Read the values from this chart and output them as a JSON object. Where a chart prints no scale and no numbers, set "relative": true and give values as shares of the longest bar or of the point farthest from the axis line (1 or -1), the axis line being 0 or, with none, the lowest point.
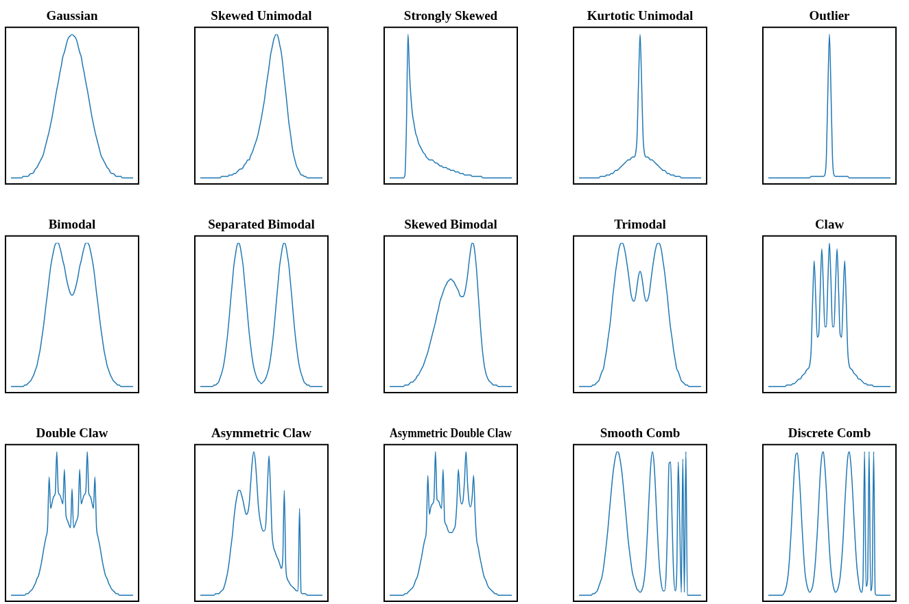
{
  "chart_data": [
    {
      "type": "line",
      "title": "Gaussian",
      "color": "#1f77b4",
      "relative": true,
      "categories": [
        null,
        null,
        null,
        null,
        null,
        null,
        null,
        null,
        null,
        null,
        null,
        null,
        null,
        null,
        null,
        null,
        null,
        null,
        null,
        null,
        null,
        null,
        null,
        null,
        null,
        null,
        null,
        null,
        null,
        null,
        null,
        null,
        null,
        null,
        null,
        null,
        null,
        null,
        null,
        null,
        null,
        null,
        null,
        null,
        null,
        null,
        null,
        null,
        null,
        null,
        null,
        null,
        null,
        null,
        null,
        null,
        null,
        null,
        null,
        null,
        null,
        null,
        null,
        null,
        null,
        null,
        null,
        null,
        null,
        null,
        null,
        null,
        null,
        null,
        null,
        null,
        null,
        null,
        null,
        null,
        null
      ],
      "values": [
        0.04,
        0.04,
        0.04,
        0.04,
        0.04,
        0.04,
        0.04,
        0.04,
        0.05,
        0.05,
        0.05,
        0.05,
        0.06,
        0.07,
        0.07,
        0.08,
        0.1,
        0.11,
        0.13,
        0.15,
        0.17,
        0.19,
        0.23,
        0.27,
        0.31,
        0.35,
        0.4,
        0.45,
        0.51,
        0.57,
        0.63,
        0.68,
        0.74,
        0.79,
        0.85,
        0.88,
        0.92,
        0.96,
        0.98,
        0.99,
        1,
        0.99,
        0.98,
        0.96,
        0.92,
        0.88,
        0.85,
        0.79,
        0.74,
        0.68,
        0.63,
        0.57,
        0.51,
        0.45,
        0.4,
        0.35,
        0.31,
        0.27,
        0.23,
        0.19,
        0.17,
        0.15,
        0.13,
        0.11,
        0.1,
        0.08,
        0.07,
        0.07,
        0.06,
        0.05,
        0.05,
        0.05,
        0.05,
        0.04,
        0.04,
        0.04,
        0.04,
        0.04,
        0.04,
        0.04,
        0.04
      ]
    },
    {
      "type": "line",
      "title": "Skewed Unimodal",
      "color": "#1f77b4",
      "relative": true,
      "categories": [
        null,
        null,
        null,
        null,
        null,
        null,
        null,
        null,
        null,
        null,
        null,
        null,
        null,
        null,
        null,
        null,
        null,
        null,
        null,
        null,
        null,
        null,
        null,
        null,
        null,
        null,
        null,
        null,
        null,
        null,
        null,
        null,
        null,
        null,
        null,
        null,
        null,
        null,
        null,
        null,
        null,
        null,
        null,
        null,
        null,
        null,
        null,
        null,
        null,
        null,
        null,
        null,
        null,
        null,
        null,
        null,
        null,
        null,
        null,
        null,
        null,
        null,
        null,
        null,
        null,
        null,
        null,
        null,
        null,
        null,
        null,
        null,
        null,
        null,
        null,
        null,
        null,
        null,
        null,
        null,
        null
      ],
      "values": [
        0.04,
        0.04,
        0.04,
        0.04,
        0.04,
        0.04,
        0.04,
        0.04,
        0.04,
        0.04,
        0.04,
        0.04,
        0.04,
        0.04,
        0.05,
        0.05,
        0.05,
        0.05,
        0.05,
        0.06,
        0.06,
        0.06,
        0.07,
        0.07,
        0.08,
        0.09,
        0.1,
        0.1,
        0.11,
        0.13,
        0.14,
        0.16,
        0.16,
        0.19,
        0.21,
        0.24,
        0.27,
        0.3,
        0.34,
        0.39,
        0.44,
        0.5,
        0.56,
        0.64,
        0.71,
        0.78,
        0.86,
        0.91,
        0.96,
        0.99,
        1,
        0.98,
        0.93,
        0.88,
        0.8,
        0.7,
        0.61,
        0.51,
        0.41,
        0.34,
        0.26,
        0.2,
        0.16,
        0.12,
        0.1,
        0.08,
        0.06,
        0.06,
        0.05,
        0.05,
        0.04,
        0.04,
        0.04,
        0.04,
        0.04,
        0.04,
        0.04,
        0.04,
        0.04,
        0.04,
        0.04
      ]
    },
    {
      "type": "line",
      "title": "Strongly Skewed",
      "color": "#1f77b4",
      "relative": true,
      "categories": [
        null,
        null,
        null,
        null,
        null,
        null,
        null,
        null,
        null,
        null,
        null,
        null,
        null,
        null,
        null,
        null,
        null,
        null,
        null,
        null,
        null,
        null,
        null,
        null,
        null,
        null,
        null,
        null,
        null,
        null,
        null,
        null,
        null,
        null,
        null,
        null,
        null,
        null,
        null,
        null,
        null,
        null,
        null,
        null,
        null,
        null,
        null,
        null,
        null,
        null,
        null,
        null,
        null,
        null,
        null,
        null,
        null,
        null,
        null,
        null,
        null,
        null,
        null,
        null,
        null,
        null,
        null,
        null,
        null,
        null,
        null,
        null,
        null,
        null,
        null,
        null,
        null,
        null,
        null,
        null,
        null
      ],
      "values": [
        0.04,
        0.04,
        0.04,
        0.04,
        0.04,
        0.04,
        0.04,
        0.04,
        0.04,
        0.04,
        0.06,
        0.4,
        1,
        0.74,
        0.57,
        0.46,
        0.4,
        0.34,
        0.31,
        0.27,
        0.25,
        0.23,
        0.21,
        0.2,
        0.18,
        0.17,
        0.16,
        0.16,
        0.16,
        0.15,
        0.14,
        0.14,
        0.13,
        0.12,
        0.12,
        0.11,
        0.11,
        0.11,
        0.1,
        0.1,
        0.09,
        0.09,
        0.09,
        0.08,
        0.08,
        0.08,
        0.07,
        0.07,
        0.07,
        0.06,
        0.06,
        0.06,
        0.06,
        0.06,
        0.05,
        0.05,
        0.05,
        0.05,
        0.05,
        0.05,
        0.05,
        0.04,
        0.04,
        0.04,
        0.04,
        0.04,
        0.04,
        0.04,
        0.04,
        0.04,
        0.04,
        0.04,
        0.04,
        0.04,
        0.04,
        0.04,
        0.04,
        0.04,
        0.04,
        0.04,
        0.04
      ]
    },
    {
      "type": "line",
      "title": "Kurtotic Unimodal",
      "color": "#1f77b4",
      "relative": true,
      "categories": [
        null,
        null,
        null,
        null,
        null,
        null,
        null,
        null,
        null,
        null,
        null,
        null,
        null,
        null,
        null,
        null,
        null,
        null,
        null,
        null,
        null,
        null,
        null,
        null,
        null,
        null,
        null,
        null,
        null,
        null,
        null,
        null,
        null,
        null,
        null,
        null,
        null,
        null,
        null,
        null,
        null,
        null,
        null,
        null,
        null,
        null,
        null,
        null,
        null,
        null,
        null,
        null,
        null,
        null,
        null,
        null,
        null,
        null,
        null,
        null,
        null,
        null,
        null,
        null,
        null,
        null,
        null,
        null,
        null,
        null,
        null,
        null,
        null,
        null,
        null,
        null,
        null,
        null,
        null,
        null,
        null
      ],
      "values": [
        0.04,
        0.04,
        0.04,
        0.04,
        0.04,
        0.04,
        0.04,
        0.04,
        0.04,
        0.04,
        0.04,
        0.04,
        0.04,
        0.04,
        0.05,
        0.05,
        0.05,
        0.05,
        0.06,
        0.06,
        0.06,
        0.07,
        0.07,
        0.08,
        0.09,
        0.09,
        0.1,
        0.11,
        0.12,
        0.13,
        0.14,
        0.15,
        0.16,
        0.16,
        0.17,
        0.18,
        0.18,
        0.2,
        0.31,
        0.68,
        1,
        0.68,
        0.31,
        0.2,
        0.18,
        0.18,
        0.17,
        0.16,
        0.16,
        0.15,
        0.14,
        0.13,
        0.12,
        0.11,
        0.1,
        0.09,
        0.09,
        0.08,
        0.07,
        0.07,
        0.06,
        0.06,
        0.06,
        0.05,
        0.05,
        0.05,
        0.05,
        0.04,
        0.04,
        0.04,
        0.04,
        0.04,
        0.04,
        0.04,
        0.04,
        0.04,
        0.04,
        0.04,
        0.04,
        0.04,
        0.04
      ]
    },
    {
      "type": "line",
      "title": "Outlier",
      "color": "#1f77b4",
      "relative": true,
      "categories": [
        null,
        null,
        null,
        null,
        null,
        null,
        null,
        null,
        null,
        null,
        null,
        null,
        null,
        null,
        null,
        null,
        null,
        null,
        null,
        null,
        null,
        null,
        null,
        null,
        null,
        null,
        null,
        null,
        null,
        null,
        null,
        null,
        null,
        null,
        null,
        null,
        null,
        null,
        null,
        null,
        null,
        null,
        null,
        null,
        null,
        null,
        null,
        null,
        null,
        null,
        null,
        null,
        null,
        null,
        null,
        null,
        null,
        null,
        null,
        null,
        null,
        null,
        null,
        null,
        null,
        null,
        null,
        null,
        null,
        null,
        null,
        null,
        null,
        null,
        null,
        null,
        null,
        null,
        null,
        null,
        null
      ],
      "values": [
        0.04,
        0.04,
        0.04,
        0.04,
        0.04,
        0.04,
        0.04,
        0.04,
        0.04,
        0.04,
        0.04,
        0.04,
        0.04,
        0.04,
        0.04,
        0.04,
        0.04,
        0.04,
        0.04,
        0.04,
        0.04,
        0.04,
        0.04,
        0.04,
        0.04,
        0.04,
        0.04,
        0.04,
        0.05,
        0.05,
        0.05,
        0.05,
        0.05,
        0.05,
        0.05,
        0.05,
        0.05,
        0.06,
        0.18,
        0.63,
        1,
        0.63,
        0.18,
        0.06,
        0.05,
        0.05,
        0.05,
        0.05,
        0.05,
        0.05,
        0.05,
        0.05,
        0.05,
        0.04,
        0.04,
        0.04,
        0.04,
        0.04,
        0.04,
        0.04,
        0.04,
        0.04,
        0.04,
        0.04,
        0.04,
        0.04,
        0.04,
        0.04,
        0.04,
        0.04,
        0.04,
        0.04,
        0.04,
        0.04,
        0.04,
        0.04,
        0.04,
        0.04,
        0.04,
        0.04,
        0.04
      ]
    },
    {
      "type": "line",
      "title": "Bimodal",
      "color": "#1f77b4",
      "relative": true,
      "categories": [
        null,
        null,
        null,
        null,
        null,
        null,
        null,
        null,
        null,
        null,
        null,
        null,
        null,
        null,
        null,
        null,
        null,
        null,
        null,
        null,
        null,
        null,
        null,
        null,
        null,
        null,
        null,
        null,
        null,
        null,
        null,
        null,
        null,
        null,
        null,
        null,
        null,
        null,
        null,
        null,
        null,
        null,
        null,
        null,
        null,
        null,
        null,
        null,
        null,
        null,
        null,
        null,
        null,
        null,
        null,
        null,
        null,
        null,
        null,
        null,
        null,
        null,
        null,
        null,
        null,
        null,
        null,
        null,
        null,
        null,
        null,
        null,
        null,
        null,
        null,
        null,
        null,
        null,
        null,
        null,
        null
      ],
      "values": [
        0.04,
        0.04,
        0.04,
        0.04,
        0.04,
        0.04,
        0.04,
        0.04,
        0.04,
        0.05,
        0.05,
        0.06,
        0.07,
        0.08,
        0.1,
        0.12,
        0.15,
        0.18,
        0.23,
        0.28,
        0.35,
        0.42,
        0.5,
        0.59,
        0.67,
        0.76,
        0.84,
        0.9,
        0.95,
        0.99,
        1,
        1,
        0.97,
        0.93,
        0.88,
        0.84,
        0.78,
        0.73,
        0.69,
        0.66,
        0.65,
        0.66,
        0.69,
        0.73,
        0.78,
        0.84,
        0.88,
        0.93,
        0.97,
        1,
        1,
        0.99,
        0.95,
        0.9,
        0.84,
        0.76,
        0.67,
        0.59,
        0.5,
        0.42,
        0.35,
        0.28,
        0.23,
        0.18,
        0.15,
        0.12,
        0.1,
        0.08,
        0.07,
        0.06,
        0.05,
        0.05,
        0.04,
        0.04,
        0.04,
        0.04,
        0.04,
        0.04,
        0.04,
        0.04,
        0.04
      ]
    },
    {
      "type": "line",
      "title": "Separated Bimodal",
      "color": "#1f77b4",
      "relative": true,
      "categories": [
        null,
        null,
        null,
        null,
        null,
        null,
        null,
        null,
        null,
        null,
        null,
        null,
        null,
        null,
        null,
        null,
        null,
        null,
        null,
        null,
        null,
        null,
        null,
        null,
        null,
        null,
        null,
        null,
        null,
        null,
        null,
        null,
        null,
        null,
        null,
        null,
        null,
        null,
        null,
        null,
        null,
        null,
        null,
        null,
        null,
        null,
        null,
        null,
        null,
        null,
        null,
        null,
        null,
        null,
        null,
        null,
        null,
        null,
        null,
        null,
        null,
        null,
        null,
        null,
        null,
        null,
        null,
        null,
        null,
        null,
        null,
        null,
        null,
        null,
        null,
        null,
        null,
        null,
        null,
        null,
        null
      ],
      "values": [
        0.04,
        0.04,
        0.04,
        0.04,
        0.04,
        0.04,
        0.04,
        0.04,
        0.04,
        0.05,
        0.05,
        0.06,
        0.07,
        0.1,
        0.13,
        0.17,
        0.23,
        0.31,
        0.4,
        0.51,
        0.63,
        0.74,
        0.85,
        0.92,
        0.98,
        1,
        0.98,
        0.92,
        0.85,
        0.74,
        0.63,
        0.51,
        0.4,
        0.31,
        0.23,
        0.17,
        0.13,
        0.1,
        0.08,
        0.07,
        0.06,
        0.07,
        0.08,
        0.1,
        0.13,
        0.17,
        0.23,
        0.31,
        0.4,
        0.51,
        0.63,
        0.74,
        0.85,
        0.92,
        0.98,
        1,
        0.98,
        0.92,
        0.85,
        0.74,
        0.63,
        0.51,
        0.4,
        0.31,
        0.23,
        0.17,
        0.13,
        0.1,
        0.07,
        0.06,
        0.05,
        0.05,
        0.04,
        0.04,
        0.04,
        0.04,
        0.04,
        0.04,
        0.04,
        0.04,
        0.04
      ]
    },
    {
      "type": "line",
      "title": "Skewed Bimodal",
      "color": "#1f77b4",
      "relative": true,
      "categories": [
        null,
        null,
        null,
        null,
        null,
        null,
        null,
        null,
        null,
        null,
        null,
        null,
        null,
        null,
        null,
        null,
        null,
        null,
        null,
        null,
        null,
        null,
        null,
        null,
        null,
        null,
        null,
        null,
        null,
        null,
        null,
        null,
        null,
        null,
        null,
        null,
        null,
        null,
        null,
        null,
        null,
        null,
        null,
        null,
        null,
        null,
        null,
        null,
        null,
        null,
        null,
        null,
        null,
        null,
        null,
        null,
        null,
        null,
        null,
        null,
        null,
        null,
        null,
        null,
        null,
        null,
        null,
        null,
        null,
        null,
        null,
        null,
        null,
        null,
        null,
        null,
        null,
        null,
        null,
        null,
        null
      ],
      "values": [
        0.04,
        0.04,
        0.04,
        0.04,
        0.04,
        0.04,
        0.04,
        0.04,
        0.04,
        0.04,
        0.05,
        0.05,
        0.05,
        0.06,
        0.07,
        0.07,
        0.08,
        0.09,
        0.11,
        0.12,
        0.14,
        0.16,
        0.18,
        0.21,
        0.24,
        0.27,
        0.31,
        0.35,
        0.39,
        0.43,
        0.47,
        0.52,
        0.56,
        0.61,
        0.64,
        0.67,
        0.7,
        0.72,
        0.74,
        0.75,
        0.76,
        0.75,
        0.74,
        0.72,
        0.7,
        0.68,
        0.65,
        0.64,
        0.64,
        0.66,
        0.71,
        0.78,
        0.87,
        0.95,
        1,
        0.99,
        0.92,
        0.81,
        0.66,
        0.51,
        0.37,
        0.26,
        0.18,
        0.13,
        0.1,
        0.08,
        0.07,
        0.06,
        0.05,
        0.05,
        0.05,
        0.04,
        0.04,
        0.04,
        0.04,
        0.04,
        0.04,
        0.04,
        0.04,
        0.04,
        0.04
      ]
    },
    {
      "type": "line",
      "title": "Trimodal",
      "color": "#1f77b4",
      "relative": true,
      "categories": [
        null,
        null,
        null,
        null,
        null,
        null,
        null,
        null,
        null,
        null,
        null,
        null,
        null,
        null,
        null,
        null,
        null,
        null,
        null,
        null,
        null,
        null,
        null,
        null,
        null,
        null,
        null,
        null,
        null,
        null,
        null,
        null,
        null,
        null,
        null,
        null,
        null,
        null,
        null,
        null,
        null,
        null,
        null,
        null,
        null,
        null,
        null,
        null,
        null,
        null,
        null,
        null,
        null,
        null,
        null,
        null,
        null,
        null,
        null,
        null,
        null,
        null,
        null,
        null,
        null,
        null,
        null,
        null,
        null,
        null,
        null,
        null,
        null,
        null,
        null,
        null,
        null,
        null,
        null,
        null,
        null
      ],
      "values": [
        0.04,
        0.04,
        0.04,
        0.04,
        0.04,
        0.04,
        0.04,
        0.04,
        0.04,
        0.05,
        0.05,
        0.06,
        0.07,
        0.08,
        0.11,
        0.14,
        0.16,
        0.22,
        0.28,
        0.36,
        0.43,
        0.52,
        0.63,
        0.72,
        0.81,
        0.88,
        0.95,
        0.99,
        1,
        0.99,
        0.95,
        0.89,
        0.82,
        0.74,
        0.66,
        0.62,
        0.61,
        0.64,
        0.71,
        0.78,
        0.81,
        0.78,
        0.71,
        0.64,
        0.61,
        0.62,
        0.66,
        0.74,
        0.82,
        0.89,
        0.95,
        0.99,
        1,
        0.99,
        0.95,
        0.88,
        0.81,
        0.72,
        0.63,
        0.52,
        0.43,
        0.36,
        0.28,
        0.22,
        0.16,
        0.14,
        0.11,
        0.08,
        0.07,
        0.06,
        0.05,
        0.05,
        0.04,
        0.04,
        0.04,
        0.04,
        0.04,
        0.04,
        0.04,
        0.04,
        0.04
      ]
    },
    {
      "type": "line",
      "title": "Claw",
      "color": "#1f77b4",
      "relative": true,
      "categories": [
        null,
        null,
        null,
        null,
        null,
        null,
        null,
        null,
        null,
        null,
        null,
        null,
        null,
        null,
        null,
        null,
        null,
        null,
        null,
        null,
        null,
        null,
        null,
        null,
        null,
        null,
        null,
        null,
        null,
        null,
        null,
        null,
        null,
        null,
        null,
        null,
        null,
        null,
        null,
        null,
        null,
        null,
        null,
        null,
        null,
        null,
        null,
        null,
        null,
        null,
        null,
        null,
        null,
        null,
        null,
        null,
        null,
        null,
        null,
        null,
        null,
        null,
        null,
        null,
        null,
        null,
        null,
        null,
        null,
        null,
        null,
        null,
        null,
        null,
        null,
        null,
        null,
        null,
        null,
        null,
        null
      ],
      "values": [
        0.04,
        0.04,
        0.04,
        0.04,
        0.04,
        0.04,
        0.04,
        0.04,
        0.04,
        0.04,
        0.04,
        0.04,
        0.05,
        0.05,
        0.05,
        0.05,
        0.06,
        0.06,
        0.07,
        0.08,
        0.09,
        0.09,
        0.11,
        0.12,
        0.13,
        0.15,
        0.16,
        0.18,
        0.28,
        0.61,
        0.88,
        0.64,
        0.37,
        0.39,
        0.69,
        0.96,
        0.72,
        0.44,
        0.44,
        0.75,
        1,
        0.75,
        0.44,
        0.44,
        0.72,
        0.96,
        0.69,
        0.39,
        0.37,
        0.64,
        0.88,
        0.61,
        0.28,
        0.18,
        0.16,
        0.15,
        0.13,
        0.12,
        0.11,
        0.09,
        0.09,
        0.08,
        0.07,
        0.06,
        0.06,
        0.05,
        0.05,
        0.05,
        0.05,
        0.04,
        0.04,
        0.04,
        0.04,
        0.04,
        0.04,
        0.04,
        0.04,
        0.04,
        0.04,
        0.04,
        0.04
      ]
    },
    {
      "type": "line",
      "title": "Double Claw",
      "color": "#1f77b4",
      "relative": true,
      "categories": [
        null,
        null,
        null,
        null,
        null,
        null,
        null,
        null,
        null,
        null,
        null,
        null,
        null,
        null,
        null,
        null,
        null,
        null,
        null,
        null,
        null,
        null,
        null,
        null,
        null,
        null,
        null,
        null,
        null,
        null,
        null,
        null,
        null,
        null,
        null,
        null,
        null,
        null,
        null,
        null,
        null,
        null,
        null,
        null,
        null,
        null,
        null,
        null,
        null,
        null,
        null,
        null,
        null,
        null,
        null,
        null,
        null,
        null,
        null,
        null,
        null,
        null,
        null,
        null,
        null,
        null,
        null,
        null,
        null,
        null,
        null,
        null,
        null,
        null,
        null,
        null,
        null,
        null,
        null,
        null,
        null
      ],
      "values": [
        0.04,
        0.04,
        0.04,
        0.04,
        0.04,
        0.04,
        0.04,
        0.04,
        0.04,
        0.04,
        0.05,
        0.05,
        0.06,
        0.07,
        0.08,
        0.1,
        0.12,
        0.15,
        0.17,
        0.21,
        0.26,
        0.32,
        0.38,
        0.43,
        0.5,
        0.83,
        0.62,
        0.66,
        0.7,
        0.72,
        1,
        0.73,
        0.71,
        0.68,
        0.65,
        0.88,
        0.58,
        0.54,
        0.51,
        0.49,
        0.75,
        0.49,
        0.51,
        0.54,
        0.58,
        0.88,
        0.65,
        0.68,
        0.71,
        0.73,
        1,
        0.72,
        0.7,
        0.66,
        0.62,
        0.83,
        0.5,
        0.43,
        0.38,
        0.32,
        0.26,
        0.21,
        0.17,
        0.15,
        0.12,
        0.1,
        0.08,
        0.07,
        0.06,
        0.05,
        0.05,
        0.04,
        0.04,
        0.04,
        0.04,
        0.04,
        0.04,
        0.04,
        0.04,
        0.04,
        0.04
      ]
    },
    {
      "type": "line",
      "title": "Asymmetric Claw",
      "color": "#1f77b4",
      "relative": true,
      "categories": [
        null,
        null,
        null,
        null,
        null,
        null,
        null,
        null,
        null,
        null,
        null,
        null,
        null,
        null,
        null,
        null,
        null,
        null,
        null,
        null,
        null,
        null,
        null,
        null,
        null,
        null,
        null,
        null,
        null,
        null,
        null,
        null,
        null,
        null,
        null,
        null,
        null,
        null,
        null,
        null,
        null,
        null,
        null,
        null,
        null,
        null,
        null,
        null,
        null,
        null,
        null,
        null,
        null,
        null,
        null,
        null,
        null,
        null,
        null,
        null,
        null,
        null,
        null,
        null,
        null,
        null,
        null,
        null,
        null,
        null,
        null,
        null,
        null,
        null,
        null,
        null,
        null,
        null,
        null,
        null,
        null
      ],
      "values": [
        0.04,
        0.04,
        0.04,
        0.04,
        0.04,
        0.04,
        0.04,
        0.04,
        0.04,
        0.04,
        0.05,
        0.05,
        0.05,
        0.06,
        0.07,
        0.08,
        0.11,
        0.15,
        0.2,
        0.27,
        0.36,
        0.44,
        0.55,
        0.64,
        0.7,
        0.74,
        0.74,
        0.71,
        0.67,
        0.62,
        0.58,
        0.59,
        0.65,
        0.79,
        0.93,
        1,
        0.94,
        0.8,
        0.64,
        0.55,
        0.5,
        0.47,
        0.47,
        0.53,
        0.77,
        0.97,
        0.74,
        0.45,
        0.36,
        0.33,
        0.3,
        0.28,
        0.25,
        0.22,
        0.28,
        0.74,
        0.23,
        0.15,
        0.13,
        0.11,
        0.1,
        0.09,
        0.08,
        0.07,
        0.07,
        0.62,
        0.06,
        0.05,
        0.05,
        0.05,
        0.04,
        0.04,
        0.04,
        0.04,
        0.04,
        0.04,
        0.04,
        0.04,
        0.04,
        0.04,
        0.04
      ]
    },
    {
      "type": "line",
      "title": "Asymmetric Double Claw",
      "color": "#1f77b4",
      "relative": true,
      "categories": [
        null,
        null,
        null,
        null,
        null,
        null,
        null,
        null,
        null,
        null,
        null,
        null,
        null,
        null,
        null,
        null,
        null,
        null,
        null,
        null,
        null,
        null,
        null,
        null,
        null,
        null,
        null,
        null,
        null,
        null,
        null,
        null,
        null,
        null,
        null,
        null,
        null,
        null,
        null,
        null,
        null,
        null,
        null,
        null,
        null,
        null,
        null,
        null,
        null,
        null,
        null,
        null,
        null,
        null,
        null,
        null,
        null,
        null,
        null,
        null,
        null,
        null,
        null,
        null,
        null,
        null,
        null,
        null,
        null,
        null,
        null,
        null,
        null,
        null,
        null,
        null,
        null,
        null,
        null,
        null,
        null
      ],
      "values": [
        0.04,
        0.04,
        0.04,
        0.04,
        0.04,
        0.04,
        0.04,
        0.04,
        0.04,
        0.04,
        0.05,
        0.05,
        0.06,
        0.07,
        0.08,
        0.09,
        0.11,
        0.14,
        0.16,
        0.2,
        0.25,
        0.3,
        0.36,
        0.41,
        0.47,
        0.84,
        0.58,
        0.63,
        0.65,
        0.68,
        1,
        0.68,
        0.67,
        0.64,
        0.62,
        0.88,
        0.54,
        0.51,
        0.48,
        0.46,
        0.46,
        0.46,
        0.48,
        0.51,
        0.65,
        0.88,
        0.72,
        0.65,
        0.67,
        0.8,
        1,
        0.79,
        0.66,
        0.63,
        0.69,
        0.84,
        0.58,
        0.41,
        0.36,
        0.3,
        0.25,
        0.2,
        0.16,
        0.14,
        0.11,
        0.09,
        0.08,
        0.07,
        0.06,
        0.05,
        0.05,
        0.04,
        0.04,
        0.04,
        0.04,
        0.04,
        0.04,
        0.04,
        0.04,
        0.04,
        0.04
      ]
    },
    {
      "type": "line",
      "title": "Smooth Comb",
      "color": "#1f77b4",
      "relative": true,
      "categories": [
        null,
        null,
        null,
        null,
        null,
        null,
        null,
        null,
        null,
        null,
        null,
        null,
        null,
        null,
        null,
        null,
        null,
        null,
        null,
        null,
        null,
        null,
        null,
        null,
        null,
        null,
        null,
        null,
        null,
        null,
        null,
        null,
        null,
        null,
        null,
        null,
        null,
        null,
        null,
        null,
        null,
        null,
        null,
        null,
        null,
        null,
        null,
        null,
        null,
        null,
        null,
        null,
        null,
        null,
        null,
        null,
        null,
        null,
        null,
        null,
        null,
        null,
        null,
        null,
        null,
        null,
        null,
        null,
        null,
        null,
        null,
        null,
        null,
        null,
        null,
        null,
        null,
        null,
        null,
        null,
        null
      ],
      "values": [
        0.04,
        0.04,
        0.04,
        0.04,
        0.04,
        0.04,
        0.04,
        0.04,
        0.04,
        0.05,
        0.05,
        0.06,
        0.07,
        0.1,
        0.13,
        0.16,
        0.22,
        0.3,
        0.39,
        0.49,
        0.61,
        0.72,
        0.83,
        0.91,
        0.97,
        1,
        0.99,
        0.94,
        0.87,
        0.77,
        0.66,
        0.55,
        0.43,
        0.34,
        0.26,
        0.19,
        0.15,
        0.11,
        0.08,
        0.07,
        0.06,
        0.07,
        0.1,
        0.17,
        0.3,
        0.5,
        0.72,
        0.91,
        1,
        0.94,
        0.77,
        0.54,
        0.34,
        0.19,
        0.11,
        0.07,
        0.07,
        0.17,
        0.51,
        0.92,
        0.93,
        0.53,
        0.18,
        0.07,
        0.18,
        0.93,
        0.51,
        0.06,
        0.95,
        0.06,
        1,
        0.04,
        0.04,
        0.04,
        0.04,
        0.04,
        0.04,
        0.04,
        0.04,
        0.04,
        0.04
      ]
    },
    {
      "type": "line",
      "title": "Discrete Comb",
      "color": "#1f77b4",
      "relative": true,
      "categories": [
        null,
        null,
        null,
        null,
        null,
        null,
        null,
        null,
        null,
        null,
        null,
        null,
        null,
        null,
        null,
        null,
        null,
        null,
        null,
        null,
        null,
        null,
        null,
        null,
        null,
        null,
        null,
        null,
        null,
        null,
        null,
        null,
        null,
        null,
        null,
        null,
        null,
        null,
        null,
        null,
        null,
        null,
        null,
        null,
        null,
        null,
        null,
        null,
        null,
        null,
        null,
        null,
        null,
        null,
        null,
        null,
        null,
        null,
        null,
        null,
        null,
        null,
        null,
        null,
        null,
        null,
        null,
        null,
        null,
        null,
        null,
        null,
        null,
        null,
        null,
        null,
        null,
        null,
        null,
        null,
        null
      ],
      "values": [
        0.04,
        0.04,
        0.04,
        0.04,
        0.04,
        0.04,
        0.04,
        0.04,
        0.04,
        0.04,
        0.05,
        0.07,
        0.11,
        0.18,
        0.31,
        0.48,
        0.68,
        0.87,
        0.98,
        0.99,
        0.88,
        0.71,
        0.51,
        0.33,
        0.19,
        0.12,
        0.08,
        0.06,
        0.07,
        0.1,
        0.17,
        0.29,
        0.45,
        0.65,
        0.85,
        0.97,
        1,
        0.9,
        0.74,
        0.54,
        0.35,
        0.21,
        0.13,
        0.08,
        0.06,
        0.07,
        0.1,
        0.16,
        0.27,
        0.42,
        0.63,
        0.82,
        0.96,
        1,
        0.92,
        0.77,
        0.57,
        0.38,
        0.23,
        0.14,
        0.08,
        0.06,
        0.14,
        1,
        0.1,
        0.14,
        1,
        0.07,
        0.14,
        1,
        0.05,
        0.04,
        0.04,
        0.04,
        0.04,
        0.04,
        0.04,
        0.04,
        0.04,
        0.04,
        0.04
      ]
    }
  ]
}
